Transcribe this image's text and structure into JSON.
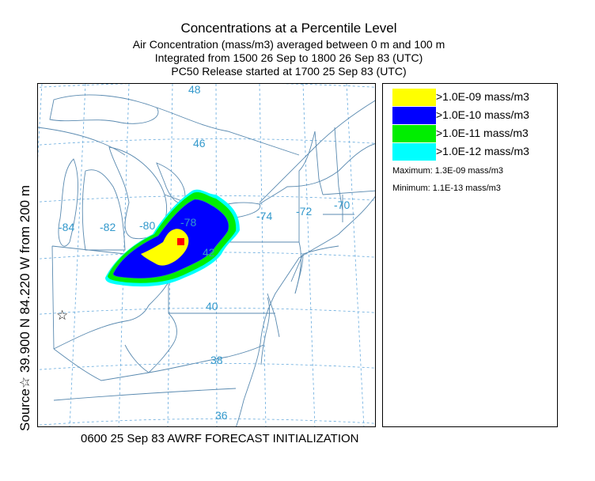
{
  "title": {
    "line1": "Concentrations at a Percentile Level",
    "line2": "Air Concentration  (mass/m3) averaged between     0 m and   100 m",
    "line3": "Integrated from 1500 26 Sep to 1800 26 Sep 83 (UTC)",
    "line4": "PC50 Release started at 1700 25 Sep 83 (UTC)"
  },
  "side_label": "Source☆ 39.900  N  84.220  W      from   200 m",
  "footer": "0600 25 Sep 83 AWRF FORECAST INITIALIZATION",
  "legend": {
    "items": [
      {
        "label": ">1.0E-09 mass/m3",
        "color": "#ffff00"
      },
      {
        "label": ">1.0E-10 mass/m3",
        "color": "#0000ff"
      },
      {
        "label": ">1.0E-11 mass/m3",
        "color": "#00ee00"
      },
      {
        "label": ">1.0E-12 mass/m3",
        "color": "#00ffff"
      }
    ],
    "maximum": "Maximum: 1.3E-09 mass/m3",
    "minimum": "Minimum: 1.1E-13 mass/m3"
  },
  "map": {
    "latitude_labels": [
      "48",
      "46",
      "42",
      "40",
      "38",
      "36"
    ],
    "longitude_labels": [
      "-84",
      "-82",
      "-80",
      "-78",
      "-74",
      "-72",
      "-70"
    ],
    "source_marker": "☆",
    "colors": {
      "graticule": "#66aadd",
      "label": "#3399cc",
      "boundary": "#5a8ab0",
      "max_marker": "#ff0000"
    }
  }
}
